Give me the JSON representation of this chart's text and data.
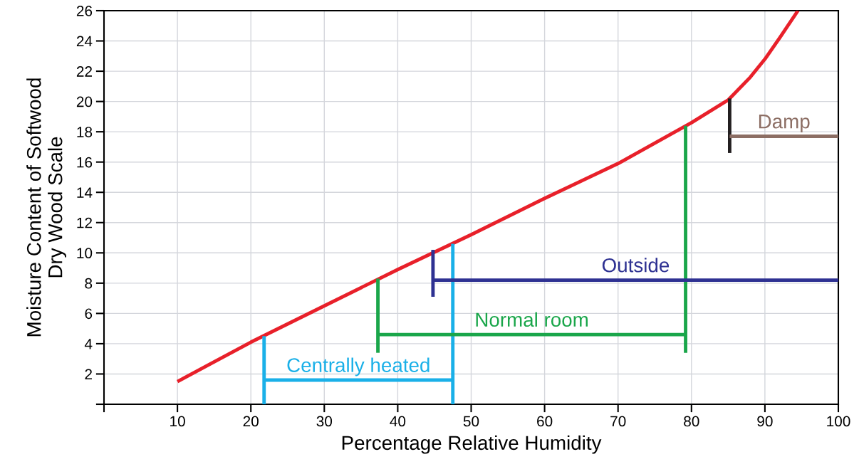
{
  "chart_data": {
    "type": "line",
    "xlabel": "Percentage Relative Humidity",
    "ylabel": "Moisture Content of Softwood\nDry Wood Scale",
    "xlim": [
      0,
      100
    ],
    "ylim": [
      0,
      26
    ],
    "xticks": [
      {
        "value": 0,
        "label": null
      },
      10,
      20,
      30,
      40,
      50,
      60,
      70,
      80,
      90,
      100
    ],
    "yticks": [
      {
        "value": 0,
        "label": null
      },
      2,
      4,
      6,
      8,
      10,
      12,
      14,
      16,
      18,
      20,
      22,
      24,
      26
    ],
    "grid": true,
    "line_style": "solid",
    "marker": "none",
    "series": [
      {
        "color": "#e8202a",
        "x": [
          10,
          20,
          30,
          40,
          50,
          60,
          70,
          80,
          85,
          88,
          90,
          92,
          94.5
        ],
        "values": [
          1.5,
          4.1,
          6.5,
          8.9,
          11.2,
          13.6,
          15.9,
          18.6,
          20.1,
          21.6,
          22.8,
          24.2,
          26
        ]
      },
      {
        "color": "#1ab0e8",
        "x": [
          21.8,
          21.8
        ],
        "values": [
          0,
          4.5
        ]
      },
      {
        "color": "#1ab0e8",
        "x": [
          47.5,
          47.5
        ],
        "values": [
          0,
          10.6
        ]
      },
      {
        "name": "Centrally heated",
        "color": "#1ab0e8",
        "x": [
          21.8,
          47.5
        ],
        "values": [
          1.6,
          1.6
        ]
      },
      {
        "color": "#1aa64a",
        "x": [
          37.3,
          37.3
        ],
        "values": [
          3.4,
          8.3
        ]
      },
      {
        "color": "#1aa64a",
        "x": [
          79.2,
          79.2
        ],
        "values": [
          3.4,
          18.4
        ]
      },
      {
        "name": "Normal room",
        "color": "#1aa64a",
        "x": [
          37.3,
          79.2
        ],
        "values": [
          4.6,
          4.6
        ]
      },
      {
        "color": "#2e3192",
        "x": [
          44.8,
          44.8
        ],
        "values": [
          7.1,
          10.2
        ]
      },
      {
        "name": "Outside",
        "color": "#2e3192",
        "x": [
          44.8,
          100
        ],
        "values": [
          8.2,
          8.2
        ]
      },
      {
        "color": "#231f20",
        "x": [
          85.2,
          85.2
        ],
        "values": [
          16.6,
          20.2
        ]
      },
      {
        "name": "Damp",
        "color": "#8c6e64",
        "x": [
          85.2,
          100
        ],
        "values": [
          17.7,
          17.7
        ]
      }
    ]
  }
}
